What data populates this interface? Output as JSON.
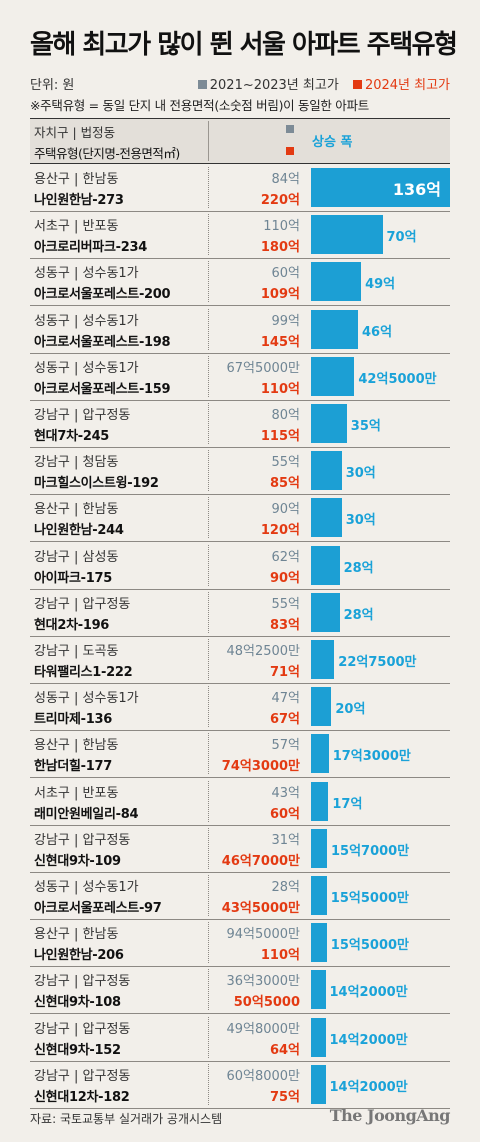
{
  "title": "올해 최고가 많이 뛴 서울 아파트 주택유형",
  "unit_label": "단위: 원",
  "legend": {
    "prev_label": "2021~2023년 최고가",
    "curr_label": "2024년 최고가",
    "prev_color": "#7d8b96",
    "curr_color": "#e33a12"
  },
  "note": "※주택유형 = 동일 단지 내 전용면적(소숫점 버림)이 동일한 아파트",
  "header": {
    "col1_top": "자치구 | 법정동",
    "col1_bottom": "주택유형(단지명-전용면적㎡)",
    "rise_label": "상승 폭"
  },
  "chart_data": {
    "type": "bar",
    "orientation": "horizontal",
    "bar_color": "#1c9fd4",
    "categories": [
      "나인원한남-273",
      "아크로리버파크-234",
      "아크로서울포레스트-200",
      "아크로서울포레스트-198",
      "아크로서울포레스트-159",
      "현대7차-245",
      "마크힐스이스트윙-192",
      "나인원한남-244",
      "아이파크-175",
      "현대2차-196",
      "타워팰리스1-222",
      "트리마제-136",
      "한남더힐-177",
      "래미안원베일리-84",
      "신현대9차-109",
      "아크로서울포레스트-97",
      "나인원한남-206",
      "신현대9차-108",
      "신현대9차-152",
      "신현대12차-182"
    ],
    "rows": [
      {
        "gu": "용산구 | 한남동",
        "name": "나인원한남-273",
        "prev": "84억",
        "curr": "220억",
        "rise_label": "136억",
        "rise_value": 136
      },
      {
        "gu": "서초구 | 반포동",
        "name": "아크로리버파크-234",
        "prev": "110억",
        "curr": "180억",
        "rise_label": "70억",
        "rise_value": 70
      },
      {
        "gu": "성동구 | 성수동1가",
        "name": "아크로서울포레스트-200",
        "prev": "60억",
        "curr": "109억",
        "rise_label": "49억",
        "rise_value": 49
      },
      {
        "gu": "성동구 | 성수동1가",
        "name": "아크로서울포레스트-198",
        "prev": "99억",
        "curr": "145억",
        "rise_label": "46억",
        "rise_value": 46
      },
      {
        "gu": "성동구 | 성수동1가",
        "name": "아크로서울포레스트-159",
        "prev": "67억5000만",
        "curr": "110억",
        "rise_label": "42억5000만",
        "rise_value": 42.5
      },
      {
        "gu": "강남구 | 압구정동",
        "name": "현대7차-245",
        "prev": "80억",
        "curr": "115억",
        "rise_label": "35억",
        "rise_value": 35
      },
      {
        "gu": "강남구 | 청담동",
        "name": "마크힐스이스트윙-192",
        "prev": "55억",
        "curr": "85억",
        "rise_label": "30억",
        "rise_value": 30
      },
      {
        "gu": "용산구 | 한남동",
        "name": "나인원한남-244",
        "prev": "90억",
        "curr": "120억",
        "rise_label": "30억",
        "rise_value": 30
      },
      {
        "gu": "강남구 | 삼성동",
        "name": "아이파크-175",
        "prev": "62억",
        "curr": "90억",
        "rise_label": "28억",
        "rise_value": 28
      },
      {
        "gu": "강남구 | 압구정동",
        "name": "현대2차-196",
        "prev": "55억",
        "curr": "83억",
        "rise_label": "28억",
        "rise_value": 28
      },
      {
        "gu": "강남구 | 도곡동",
        "name": "타워팰리스1-222",
        "prev": "48억2500만",
        "curr": "71억",
        "rise_label": "22억7500만",
        "rise_value": 22.75
      },
      {
        "gu": "성동구 | 성수동1가",
        "name": "트리마제-136",
        "prev": "47억",
        "curr": "67억",
        "rise_label": "20억",
        "rise_value": 20
      },
      {
        "gu": "용산구 | 한남동",
        "name": "한남더힐-177",
        "prev": "57억",
        "curr": "74억3000만",
        "rise_label": "17억3000만",
        "rise_value": 17.3
      },
      {
        "gu": "서초구 | 반포동",
        "name": "래미안원베일리-84",
        "prev": "43억",
        "curr": "60억",
        "rise_label": "17억",
        "rise_value": 17
      },
      {
        "gu": "강남구 | 압구정동",
        "name": "신현대9차-109",
        "prev": "31억",
        "curr": "46억7000만",
        "rise_label": "15억7000만",
        "rise_value": 15.7
      },
      {
        "gu": "성동구 | 성수동1가",
        "name": "아크로서울포레스트-97",
        "prev": "28억",
        "curr": "43억5000만",
        "rise_label": "15억5000만",
        "rise_value": 15.5
      },
      {
        "gu": "용산구 | 한남동",
        "name": "나인원한남-206",
        "prev": "94억5000만",
        "curr": "110억",
        "rise_label": "15억5000만",
        "rise_value": 15.5
      },
      {
        "gu": "강남구 | 압구정동",
        "name": "신현대9차-108",
        "prev": "36억3000만",
        "curr": "50억5000",
        "rise_label": "14억2000만",
        "rise_value": 14.2
      },
      {
        "gu": "강남구 | 압구정동",
        "name": "신현대9차-152",
        "prev": "49억8000만",
        "curr": "64억",
        "rise_label": "14억2000만",
        "rise_value": 14.2
      },
      {
        "gu": "강남구 | 압구정동",
        "name": "신현대12차-182",
        "prev": "60억8000만",
        "curr": "75억",
        "rise_label": "14억2000만",
        "rise_value": 14.2
      }
    ]
  },
  "source": "자료: 국토교통부 실거래가 공개시스템",
  "brand": "The JoongAng"
}
